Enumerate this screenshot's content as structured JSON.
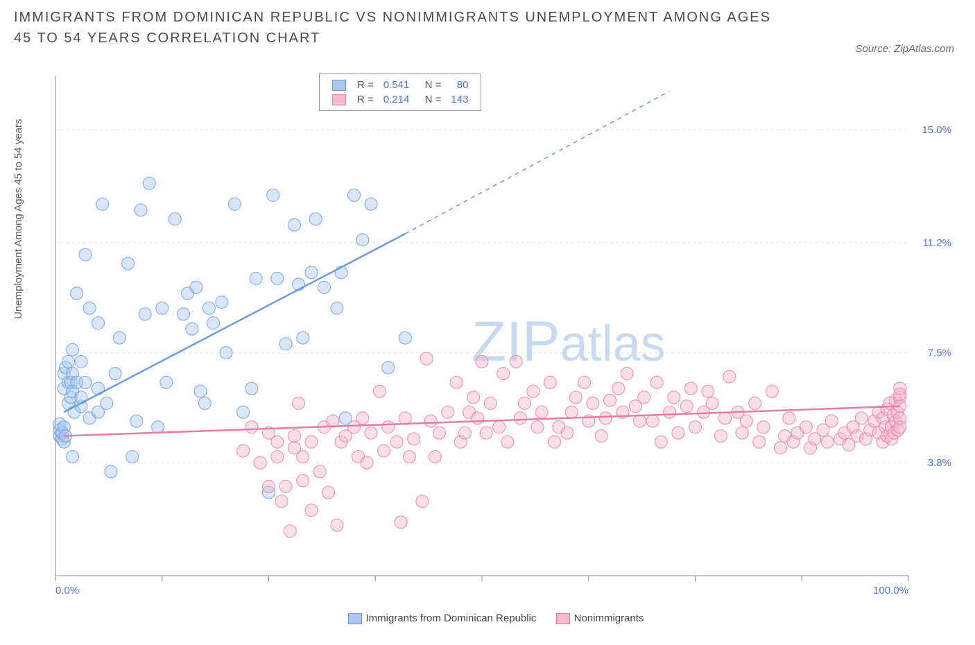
{
  "title": "IMMIGRANTS FROM DOMINICAN REPUBLIC VS NONIMMIGRANTS UNEMPLOYMENT AMONG AGES 45 TO 54 YEARS CORRELATION CHART",
  "source": "Source: ZipAtlas.com",
  "ylabel": "Unemployment Among Ages 45 to 54 years",
  "watermark_a": "ZIP",
  "watermark_b": "atlas",
  "chart": {
    "type": "scatter",
    "background_color": "#ffffff",
    "grid_color": "#e6e6e6",
    "xlim": [
      0,
      100
    ],
    "ylim": [
      0,
      16.8
    ],
    "ytick_values": [
      3.8,
      7.5,
      11.2,
      15.0
    ],
    "ytick_labels": [
      "3.8%",
      "7.5%",
      "11.2%",
      "15.0%"
    ],
    "xtick_values": [
      0,
      12.5,
      25,
      37.5,
      50,
      62.5,
      75,
      87.5,
      100
    ],
    "xtick_labels": {
      "0": "0.0%",
      "100": "100.0%"
    },
    "marker_radius": 9,
    "marker_opacity": 0.45,
    "marker_stroke_opacity": 0.9,
    "trend_width": 2.5,
    "series": [
      {
        "name": "Immigrants from Dominican Republic",
        "color": "#6b9ae2",
        "fill": "#a9c7ef",
        "stats": {
          "R": "0.541",
          "N": "80"
        },
        "trend": {
          "x1": 1,
          "y1": 5.5,
          "x2": 41,
          "y2": 11.5,
          "ext_x": 72,
          "ext_y": 16.3
        },
        "points": [
          [
            0.5,
            4.7
          ],
          [
            0.5,
            4.9
          ],
          [
            0.5,
            5.1
          ],
          [
            0.8,
            4.6
          ],
          [
            0.8,
            4.8
          ],
          [
            1.0,
            4.5
          ],
          [
            1.0,
            5.0
          ],
          [
            1.0,
            6.3
          ],
          [
            1.0,
            6.8
          ],
          [
            1.2,
            4.7
          ],
          [
            1.2,
            7.0
          ],
          [
            1.5,
            6.5
          ],
          [
            1.5,
            5.8
          ],
          [
            1.5,
            7.2
          ],
          [
            1.8,
            6.0
          ],
          [
            1.8,
            6.5
          ],
          [
            2.0,
            4.0
          ],
          [
            2.0,
            6.2
          ],
          [
            2.0,
            6.8
          ],
          [
            2.0,
            7.6
          ],
          [
            2.2,
            5.5
          ],
          [
            2.5,
            6.5
          ],
          [
            2.5,
            9.5
          ],
          [
            3.0,
            5.7
          ],
          [
            3.0,
            6.0
          ],
          [
            3.0,
            7.2
          ],
          [
            3.5,
            6.5
          ],
          [
            3.5,
            10.8
          ],
          [
            4.0,
            5.3
          ],
          [
            4.0,
            9.0
          ],
          [
            5.0,
            5.5
          ],
          [
            5.0,
            6.3
          ],
          [
            5.0,
            8.5
          ],
          [
            5.5,
            12.5
          ],
          [
            6.0,
            5.8
          ],
          [
            6.5,
            3.5
          ],
          [
            7.0,
            6.8
          ],
          [
            7.5,
            8.0
          ],
          [
            8.5,
            10.5
          ],
          [
            9.0,
            4.0
          ],
          [
            9.5,
            5.2
          ],
          [
            10.0,
            12.3
          ],
          [
            10.5,
            8.8
          ],
          [
            11.0,
            13.2
          ],
          [
            12.0,
            5.0
          ],
          [
            12.5,
            9.0
          ],
          [
            13.0,
            6.5
          ],
          [
            14.0,
            12.0
          ],
          [
            15.0,
            8.8
          ],
          [
            15.5,
            9.5
          ],
          [
            16.0,
            8.3
          ],
          [
            16.5,
            9.7
          ],
          [
            17.0,
            6.2
          ],
          [
            17.5,
            5.8
          ],
          [
            18.0,
            9.0
          ],
          [
            18.5,
            8.5
          ],
          [
            19.5,
            9.2
          ],
          [
            20.0,
            7.5
          ],
          [
            21.0,
            12.5
          ],
          [
            22.0,
            5.5
          ],
          [
            23.0,
            6.3
          ],
          [
            23.5,
            10.0
          ],
          [
            25.0,
            2.8
          ],
          [
            25.5,
            12.8
          ],
          [
            26.0,
            10.0
          ],
          [
            27.0,
            7.8
          ],
          [
            28.0,
            11.8
          ],
          [
            28.5,
            9.8
          ],
          [
            29.0,
            8.0
          ],
          [
            30.0,
            10.2
          ],
          [
            30.5,
            12.0
          ],
          [
            31.5,
            9.7
          ],
          [
            33.0,
            9.0
          ],
          [
            33.5,
            10.2
          ],
          [
            34.0,
            5.3
          ],
          [
            35.0,
            12.8
          ],
          [
            36.0,
            11.3
          ],
          [
            37.0,
            12.5
          ],
          [
            39.0,
            7.0
          ],
          [
            41.0,
            8.0
          ]
        ]
      },
      {
        "name": "Nonimmigrants",
        "color": "#e87ba5",
        "fill": "#f5b9ce",
        "stats": {
          "R": "0.214",
          "N": "143"
        },
        "trend": {
          "x1": 1,
          "y1": 4.7,
          "x2": 99,
          "y2": 5.7
        },
        "points": [
          [
            22,
            4.2
          ],
          [
            23,
            5.0
          ],
          [
            24,
            3.8
          ],
          [
            25,
            3.0
          ],
          [
            25,
            4.8
          ],
          [
            26,
            4.0
          ],
          [
            26,
            4.5
          ],
          [
            26.5,
            2.5
          ],
          [
            27,
            3.0
          ],
          [
            27.5,
            1.5
          ],
          [
            28,
            4.3
          ],
          [
            28,
            4.7
          ],
          [
            28.5,
            5.8
          ],
          [
            29,
            4.0
          ],
          [
            29,
            3.2
          ],
          [
            30,
            2.2
          ],
          [
            30,
            4.5
          ],
          [
            31,
            3.5
          ],
          [
            31.5,
            5.0
          ],
          [
            32,
            2.8
          ],
          [
            32.5,
            5.2
          ],
          [
            33,
            1.7
          ],
          [
            33.5,
            4.5
          ],
          [
            34,
            4.7
          ],
          [
            35,
            5.0
          ],
          [
            35.5,
            4.0
          ],
          [
            36,
            5.3
          ],
          [
            36.5,
            3.8
          ],
          [
            37,
            4.8
          ],
          [
            38,
            6.2
          ],
          [
            38.5,
            4.2
          ],
          [
            39,
            5.0
          ],
          [
            40,
            4.5
          ],
          [
            40.5,
            1.8
          ],
          [
            41,
            5.3
          ],
          [
            41.5,
            4.0
          ],
          [
            42,
            4.6
          ],
          [
            43,
            2.5
          ],
          [
            43.5,
            7.3
          ],
          [
            44,
            5.2
          ],
          [
            44.5,
            4.0
          ],
          [
            45,
            4.8
          ],
          [
            46,
            5.5
          ],
          [
            47,
            6.5
          ],
          [
            47.5,
            4.5
          ],
          [
            48,
            4.8
          ],
          [
            48.5,
            5.5
          ],
          [
            49,
            6.0
          ],
          [
            49.5,
            5.3
          ],
          [
            50,
            7.2
          ],
          [
            50.5,
            4.8
          ],
          [
            51,
            5.8
          ],
          [
            52,
            5.0
          ],
          [
            52.5,
            6.8
          ],
          [
            53,
            4.5
          ],
          [
            54,
            7.2
          ],
          [
            54.5,
            5.3
          ],
          [
            55,
            5.8
          ],
          [
            56,
            6.2
          ],
          [
            56.5,
            5.0
          ],
          [
            57,
            5.5
          ],
          [
            58,
            6.5
          ],
          [
            58.5,
            4.5
          ],
          [
            59,
            5.0
          ],
          [
            60,
            4.8
          ],
          [
            60.5,
            5.5
          ],
          [
            61,
            6.0
          ],
          [
            62,
            6.5
          ],
          [
            62.5,
            5.2
          ],
          [
            63,
            5.8
          ],
          [
            64,
            4.7
          ],
          [
            64.5,
            5.3
          ],
          [
            65,
            5.9
          ],
          [
            66,
            6.3
          ],
          [
            66.5,
            5.5
          ],
          [
            67,
            6.8
          ],
          [
            68,
            5.7
          ],
          [
            68.5,
            5.2
          ],
          [
            69,
            6.0
          ],
          [
            70,
            5.2
          ],
          [
            70.5,
            6.5
          ],
          [
            71,
            4.5
          ],
          [
            72,
            5.5
          ],
          [
            72.5,
            6.0
          ],
          [
            73,
            4.8
          ],
          [
            74,
            5.7
          ],
          [
            74.5,
            6.3
          ],
          [
            75,
            5.0
          ],
          [
            76,
            5.5
          ],
          [
            76.5,
            6.2
          ],
          [
            77,
            5.8
          ],
          [
            78,
            4.7
          ],
          [
            78.5,
            5.3
          ],
          [
            79,
            6.7
          ],
          [
            80,
            5.5
          ],
          [
            80.5,
            4.8
          ],
          [
            81,
            5.2
          ],
          [
            82,
            5.8
          ],
          [
            82.5,
            4.5
          ],
          [
            83,
            5.0
          ],
          [
            84,
            6.2
          ],
          [
            85,
            4.3
          ],
          [
            85.5,
            4.7
          ],
          [
            86,
            5.3
          ],
          [
            86.5,
            4.5
          ],
          [
            87,
            4.8
          ],
          [
            88,
            5.0
          ],
          [
            88.5,
            4.3
          ],
          [
            89,
            4.6
          ],
          [
            90,
            4.9
          ],
          [
            90.5,
            4.5
          ],
          [
            91,
            5.2
          ],
          [
            92,
            4.6
          ],
          [
            92.5,
            4.8
          ],
          [
            93,
            4.4
          ],
          [
            93.5,
            5.0
          ],
          [
            94,
            4.7
          ],
          [
            94.5,
            5.3
          ],
          [
            95,
            4.6
          ],
          [
            95.5,
            4.9
          ],
          [
            96,
            5.2
          ],
          [
            96.5,
            4.8
          ],
          [
            96.5,
            5.5
          ],
          [
            97,
            4.5
          ],
          [
            97,
            5.3
          ],
          [
            97.3,
            5.0
          ],
          [
            97.5,
            4.7
          ],
          [
            97.5,
            5.6
          ],
          [
            97.8,
            5.8
          ],
          [
            98,
            5.0
          ],
          [
            98,
            4.6
          ],
          [
            98.2,
            5.4
          ],
          [
            98.3,
            4.8
          ],
          [
            98.5,
            5.2
          ],
          [
            98.5,
            5.9
          ],
          [
            98.7,
            5.5
          ],
          [
            98.8,
            4.9
          ],
          [
            99,
            5.3
          ],
          [
            99,
            6.0
          ],
          [
            99,
            5.7
          ],
          [
            99,
            6.3
          ],
          [
            99,
            5.0
          ],
          [
            99,
            6.1
          ]
        ]
      }
    ]
  },
  "legend_bottom": [
    "Immigrants from Dominican Republic",
    "Nonimmigrants"
  ]
}
